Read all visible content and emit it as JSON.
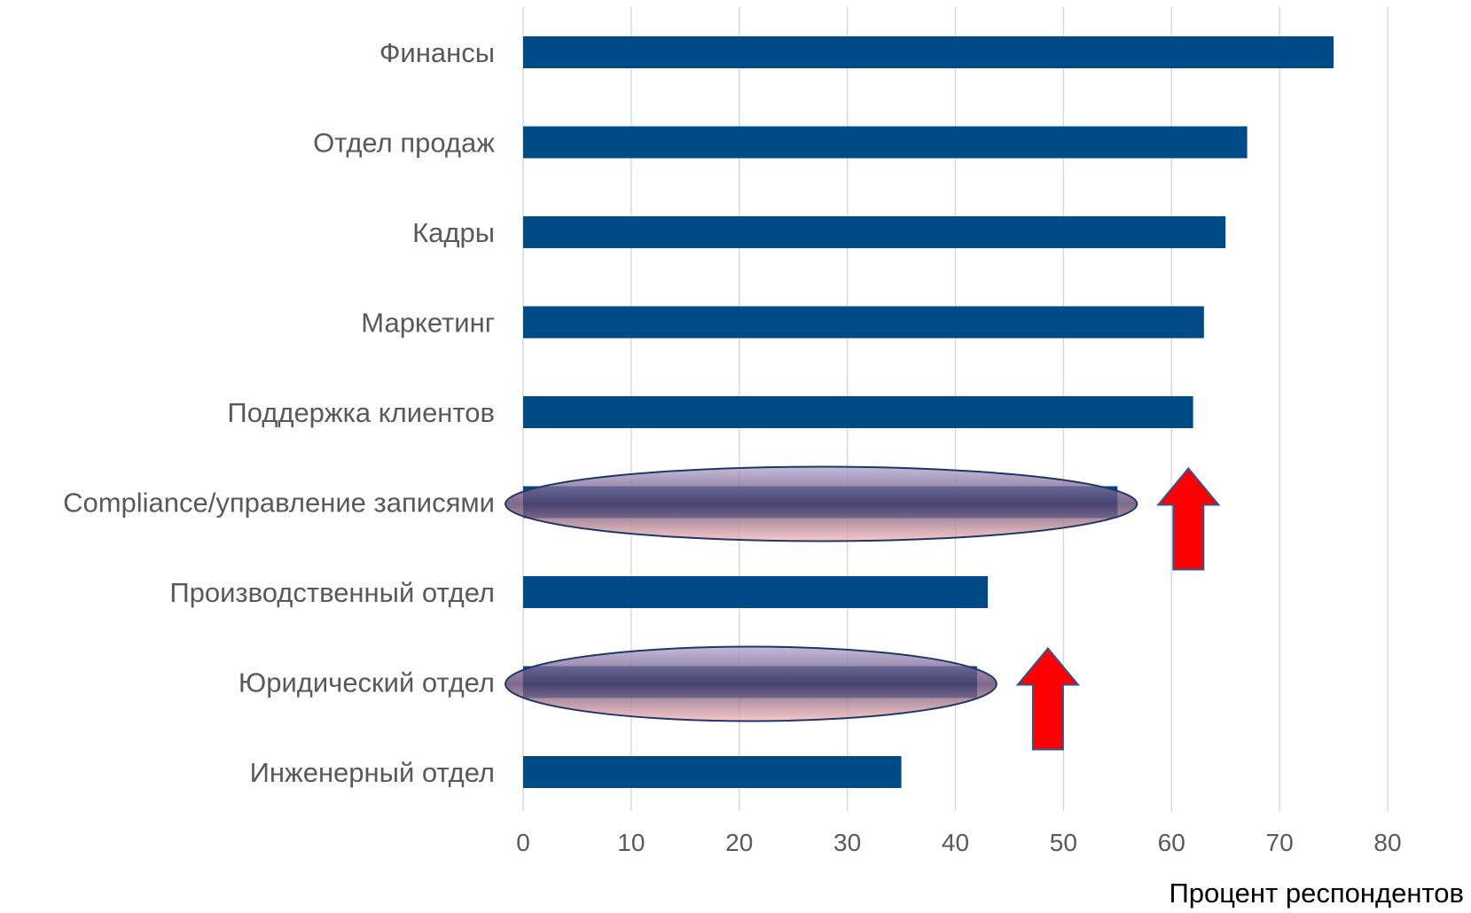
{
  "chart_data": {
    "type": "bar",
    "orientation": "horizontal",
    "categories": [
      "Финансы",
      "Отдел продаж",
      "Кадры",
      "Маркетинг",
      "Поддержка клиентов",
      "Compliance/управление записями",
      "Производственный отдел",
      "Юридический отдел",
      "Инженерный отдел"
    ],
    "values": [
      75,
      67,
      65,
      63,
      62,
      55,
      43,
      42,
      35
    ],
    "xlabel": "Процент респондентов",
    "ylabel": "",
    "xlim": [
      0,
      80
    ],
    "xticks": [
      0,
      10,
      20,
      30,
      40,
      50,
      60,
      70,
      80
    ],
    "grid": "vertical",
    "legend": "none",
    "highlighted_categories": [
      "Compliance/управление записями",
      "Юридический отдел"
    ],
    "annotations": [
      {
        "type": "ellipse",
        "category": "Compliance/управление записями"
      },
      {
        "type": "up-arrow",
        "category": "Compliance/управление записями"
      },
      {
        "type": "ellipse",
        "category": "Юридический отдел"
      },
      {
        "type": "up-arrow",
        "category": "Юридический отдел"
      }
    ]
  },
  "colors": {
    "bar": "#004b87",
    "grid": "#d9d9d9",
    "text": "#595959",
    "arrow_fill": "#ff0000",
    "arrow_stroke": "#2f5597",
    "ellipse_stroke": "#1f3864",
    "ellipse_top": "#b4a6d0",
    "ellipse_mid": "#5a3f6a",
    "ellipse_bottom": "#f5b9b9"
  }
}
